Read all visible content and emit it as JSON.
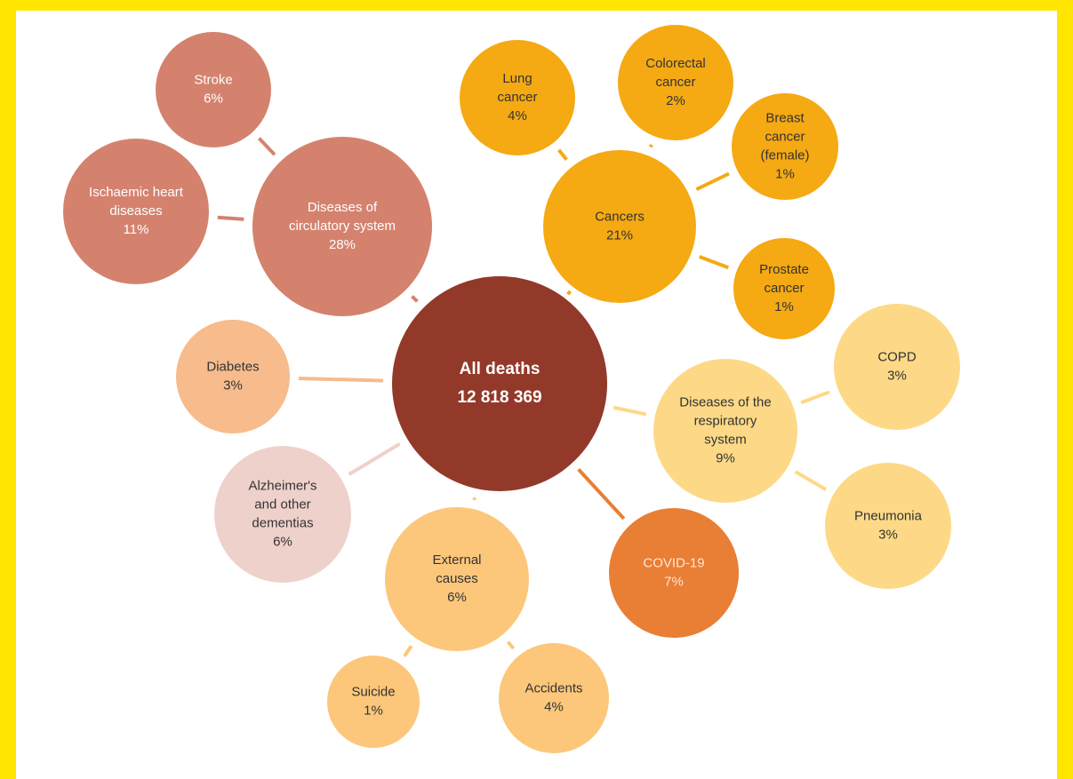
{
  "colors": {
    "border": "#FFE600",
    "center": "#93392A",
    "circulatory": "#D4826E",
    "cancer": "#F5A913",
    "respiratory": "#FDD987",
    "external": "#FCC77A",
    "diabetes": "#F7BB8C",
    "alzheimers": "#EFD1CC",
    "covid": "#E97E35"
  },
  "center": {
    "line1": "All deaths",
    "line2": "12 818 369"
  },
  "nodes": [
    {
      "id": "circulatory",
      "lines": [
        "Diseases of",
        "circulatory system",
        "28%"
      ]
    },
    {
      "id": "stroke",
      "lines": [
        "Stroke",
        "6%"
      ]
    },
    {
      "id": "ischaemic",
      "lines": [
        "Ischaemic heart",
        "diseases",
        "11%"
      ]
    },
    {
      "id": "cancers",
      "lines": [
        "Cancers",
        "21%"
      ]
    },
    {
      "id": "lung",
      "lines": [
        "Lung",
        "cancer",
        "4%"
      ]
    },
    {
      "id": "colorectal",
      "lines": [
        "Colorectal",
        "cancer",
        "2%"
      ]
    },
    {
      "id": "breast",
      "lines": [
        "Breast",
        "cancer",
        "(female)",
        "1%"
      ]
    },
    {
      "id": "prostate",
      "lines": [
        "Prostate",
        "cancer",
        "1%"
      ]
    },
    {
      "id": "respiratory",
      "lines": [
        "Diseases of the",
        "respiratory",
        "system",
        "9%"
      ]
    },
    {
      "id": "copd",
      "lines": [
        "COPD",
        "3%"
      ]
    },
    {
      "id": "pneumonia",
      "lines": [
        "Pneumonia",
        "3%"
      ]
    },
    {
      "id": "diabetes",
      "lines": [
        "Diabetes",
        "3%"
      ]
    },
    {
      "id": "alzheimers",
      "lines": [
        "Alzheimer's",
        "and other",
        "dementias",
        "6%"
      ]
    },
    {
      "id": "external",
      "lines": [
        "External",
        "causes",
        "6%"
      ]
    },
    {
      "id": "suicide",
      "lines": [
        "Suicide",
        "1%"
      ]
    },
    {
      "id": "accidents",
      "lines": [
        "Accidents",
        "4%"
      ]
    },
    {
      "id": "covid",
      "lines": [
        "COVID-19",
        "7%"
      ]
    }
  ]
}
